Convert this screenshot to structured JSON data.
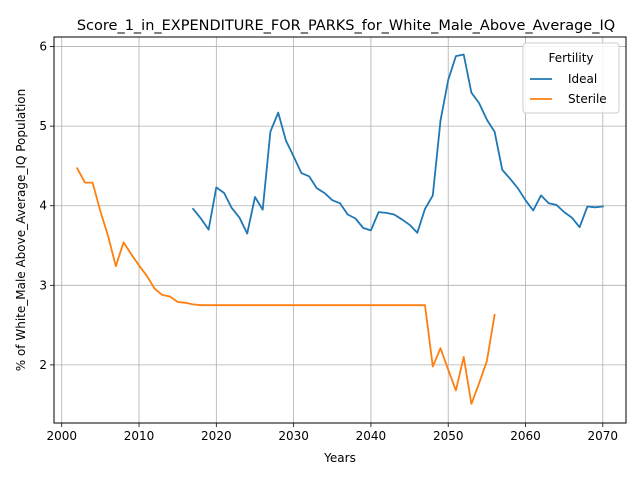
{
  "chart_data": {
    "type": "line",
    "title": "Score_1_in_EXPENDITURE_FOR_PARKS_for_White_Male_Above_Average_IQ",
    "xlabel": "Years",
    "ylabel": "% of White_Male Above_Average_IQ Population",
    "xlim": [
      1999,
      2073
    ],
    "ylim": [
      1.27,
      6.12
    ],
    "x_ticks": [
      2000,
      2010,
      2020,
      2030,
      2040,
      2050,
      2060,
      2070
    ],
    "y_ticks": [
      2,
      3,
      4,
      5,
      6
    ],
    "grid": true,
    "legend": {
      "title": "Fertility",
      "placement": "top-right"
    },
    "series": [
      {
        "name": "Ideal",
        "color": "#1f77b4",
        "x": [
          2017,
          2018,
          2019,
          2020,
          2021,
          2022,
          2023,
          2024,
          2025,
          2026,
          2027,
          2028,
          2029,
          2030,
          2031,
          2032,
          2033,
          2034,
          2035,
          2036,
          2037,
          2038,
          2039,
          2040,
          2041,
          2042,
          2043,
          2044,
          2045,
          2046,
          2047,
          2048,
          2049,
          2050,
          2051,
          2052,
          2053,
          2054,
          2055,
          2056,
          2057,
          2058,
          2059,
          2060,
          2061,
          2062,
          2063,
          2064,
          2065,
          2066,
          2067,
          2068,
          2069,
          2070
        ],
        "values": [
          3.96,
          3.84,
          3.7,
          4.23,
          4.16,
          3.97,
          3.85,
          3.65,
          4.11,
          3.95,
          4.93,
          5.17,
          4.82,
          4.62,
          4.41,
          4.37,
          4.22,
          4.16,
          4.07,
          4.03,
          3.89,
          3.84,
          3.72,
          3.69,
          3.92,
          3.91,
          3.89,
          3.83,
          3.76,
          3.66,
          3.96,
          4.13,
          5.07,
          5.58,
          5.88,
          5.9,
          5.42,
          5.29,
          5.08,
          4.93,
          4.45,
          4.34,
          4.22,
          4.07,
          3.94,
          4.13,
          4.03,
          4.01,
          3.92,
          3.85,
          3.73,
          3.99,
          3.98,
          3.99
        ]
      },
      {
        "name": "Sterile",
        "color": "#ff7f0e",
        "x": [
          2002,
          2003,
          2004,
          2005,
          2006,
          2007,
          2008,
          2009,
          2010,
          2011,
          2012,
          2013,
          2014,
          2015,
          2016,
          2017,
          2018,
          2019,
          2020,
          2021,
          2022,
          2023,
          2024,
          2025,
          2026,
          2027,
          2028,
          2029,
          2030,
          2031,
          2032,
          2033,
          2034,
          2035,
          2036,
          2037,
          2038,
          2039,
          2040,
          2041,
          2042,
          2043,
          2044,
          2045,
          2046,
          2047,
          2048,
          2049,
          2050,
          2051,
          2052,
          2053,
          2054,
          2055,
          2056
        ],
        "values": [
          4.47,
          4.29,
          4.29,
          3.93,
          3.62,
          3.24,
          3.54,
          3.39,
          3.25,
          3.12,
          2.96,
          2.88,
          2.86,
          2.79,
          2.78,
          2.76,
          2.75,
          2.75,
          2.75,
          2.75,
          2.75,
          2.75,
          2.75,
          2.75,
          2.75,
          2.75,
          2.75,
          2.75,
          2.75,
          2.75,
          2.75,
          2.75,
          2.75,
          2.75,
          2.75,
          2.75,
          2.75,
          2.75,
          2.75,
          2.75,
          2.75,
          2.75,
          2.75,
          2.75,
          2.75,
          2.75,
          1.98,
          2.21,
          1.94,
          1.68,
          2.1,
          1.51,
          1.77,
          2.05,
          2.63
        ]
      }
    ]
  }
}
